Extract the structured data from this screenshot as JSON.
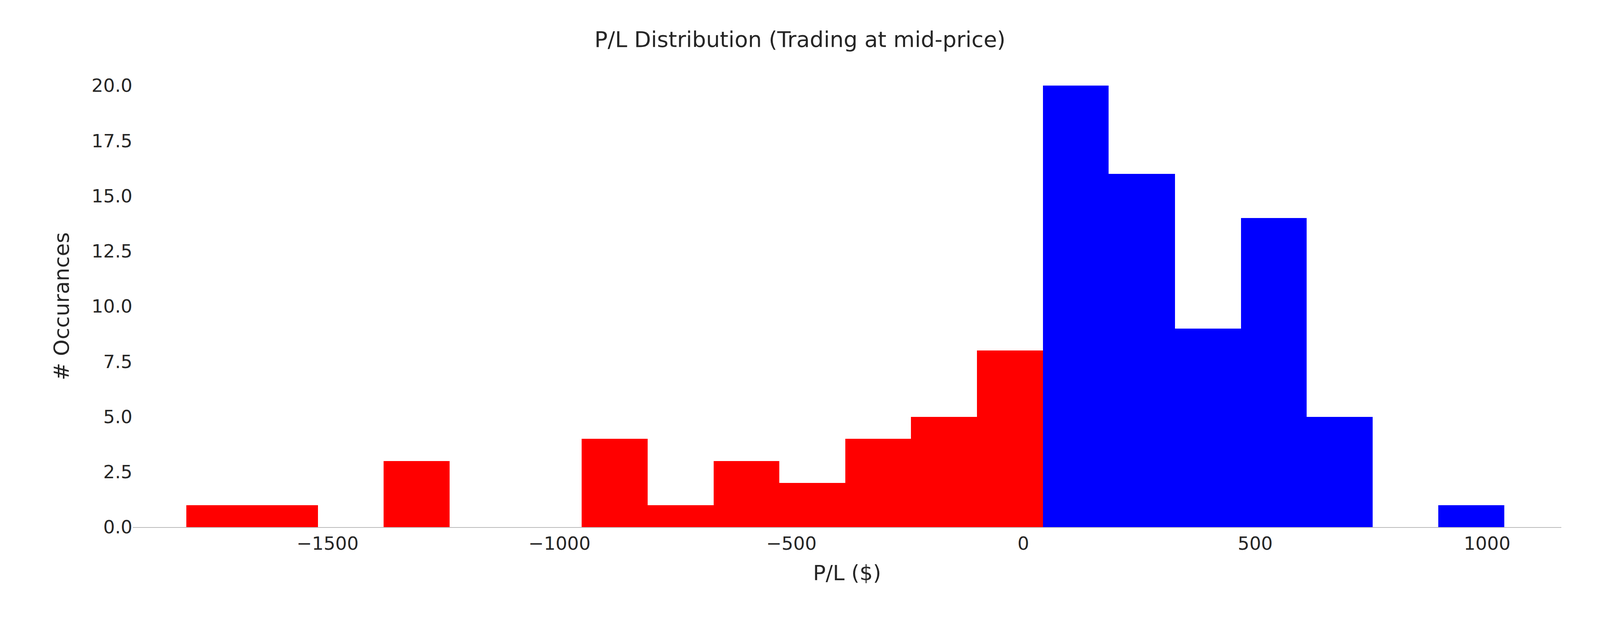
{
  "chart_data": {
    "type": "histogram",
    "title": "P/L Distribution (Trading at mid-price)",
    "x_label": "P/L ($)",
    "y_label": "# Occurances",
    "bins": [
      -1805,
      -1663,
      -1521,
      -1379,
      -1237,
      -1095,
      -952,
      -810,
      -668,
      -526,
      -384,
      -242,
      -100,
      42,
      184,
      327,
      469,
      611,
      753,
      895,
      1037
    ],
    "values": [
      1,
      1,
      0,
      3,
      0,
      0,
      4,
      1,
      3,
      2,
      4,
      5,
      8,
      20,
      16,
      9,
      14,
      5,
      0,
      1
    ],
    "colors": [
      "#ff0000",
      "#ff0000",
      "#ff0000",
      "#ff0000",
      "#ff0000",
      "#ff0000",
      "#ff0000",
      "#ff0000",
      "#ff0000",
      "#ff0000",
      "#ff0000",
      "#ff0000",
      "#ff0000",
      "#0000ff",
      "#0000ff",
      "#0000ff",
      "#0000ff",
      "#0000ff",
      "#0000ff",
      "#0000ff"
    ],
    "xlim": [
      -1920,
      1160
    ],
    "xticks": [
      {
        "value": -1500,
        "label": "−1500"
      },
      {
        "value": -1000,
        "label": "−1000"
      },
      {
        "value": -500,
        "label": "−500"
      },
      0,
      500,
      1000
    ],
    "ylim": [
      0,
      20
    ],
    "yticks": [
      {
        "value": 0,
        "label": "0.0"
      },
      2.5,
      {
        "value": 5,
        "label": "5.0"
      },
      7.5,
      {
        "value": 10,
        "label": "10.0"
      },
      12.5,
      {
        "value": 15,
        "label": "15.0"
      },
      17.5,
      {
        "value": 20,
        "label": "20.0"
      }
    ],
    "grid": false
  }
}
